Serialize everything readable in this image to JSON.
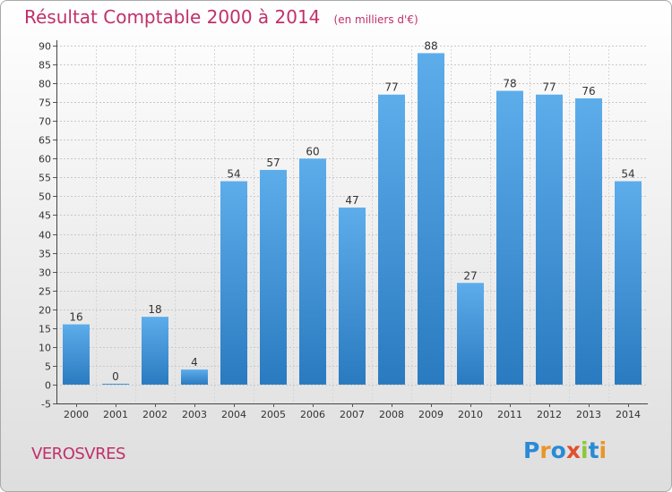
{
  "header": {
    "title": "Résultat Comptable 2000 à 2014",
    "subtitle": "(en milliers d'€)"
  },
  "footer": {
    "commune": "VEROSVRES",
    "logo_letters": [
      {
        "ch": "P",
        "color": "#2a8ad6"
      },
      {
        "ch": "r",
        "color": "#e8962a"
      },
      {
        "ch": "o",
        "color": "#2a8ad6"
      },
      {
        "ch": "x",
        "color": "#e04f2f"
      },
      {
        "ch": "i",
        "color": "#8cc63e"
      },
      {
        "ch": "t",
        "color": "#2a8ad6"
      },
      {
        "ch": "i",
        "color": "#e8962a"
      }
    ]
  },
  "colors": {
    "accent": "#c0306a",
    "bar_light": "#5dadeb",
    "bar_dark": "#2a7ac0"
  },
  "chart_data": {
    "type": "bar",
    "title": "Résultat Comptable 2000 à 2014",
    "subtitle": "(en milliers d'€)",
    "categories": [
      "2000",
      "2001",
      "2002",
      "2003",
      "2004",
      "2005",
      "2006",
      "2007",
      "2008",
      "2009",
      "2010",
      "2011",
      "2012",
      "2013",
      "2014"
    ],
    "values": [
      16,
      0,
      18,
      4,
      54,
      57,
      60,
      47,
      77,
      88,
      27,
      78,
      77,
      76,
      54
    ],
    "ylim": [
      -5,
      90
    ],
    "yticks": [
      -5,
      0,
      5,
      10,
      15,
      20,
      25,
      30,
      35,
      40,
      45,
      50,
      55,
      60,
      65,
      70,
      75,
      80,
      85,
      90
    ],
    "grid": true,
    "show_data_labels": true
  }
}
